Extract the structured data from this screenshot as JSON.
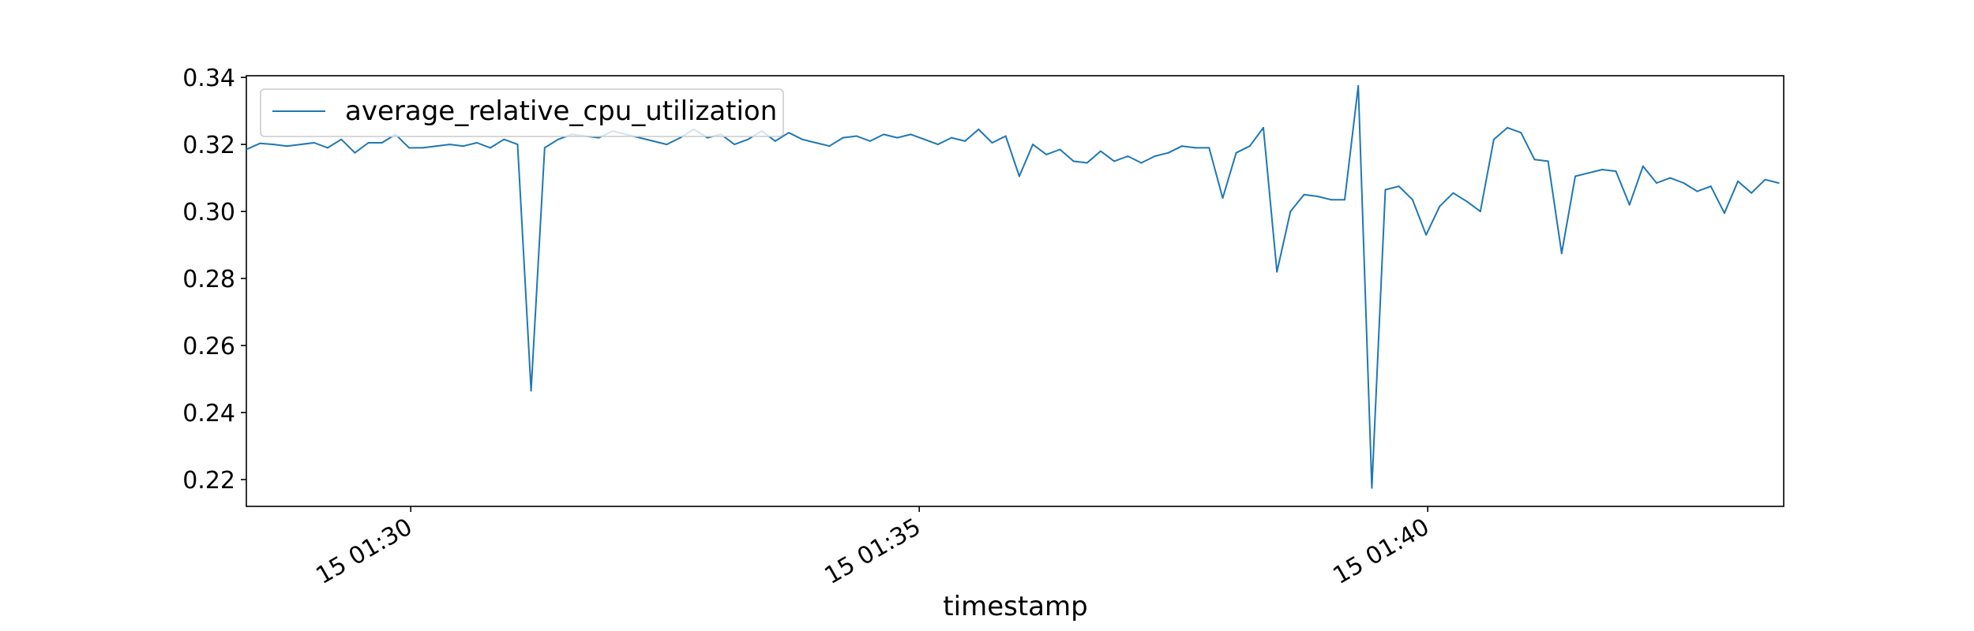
{
  "chart_data": {
    "type": "line",
    "title": "",
    "xlabel": "timestamp",
    "ylabel": "",
    "grid": false,
    "legend_position": "top-left",
    "xlim": [
      "01:28:23",
      "01:43:30"
    ],
    "ylim": [
      0.212,
      0.3405
    ],
    "x_ticks": [
      {
        "time": "01:30:00",
        "label": "15 01:30"
      },
      {
        "time": "01:35:00",
        "label": "15 01:35"
      },
      {
        "time": "01:40:00",
        "label": "15 01:40"
      }
    ],
    "y_ticks": [
      {
        "value": 0.22,
        "label": "0.22"
      },
      {
        "value": 0.24,
        "label": "0.24"
      },
      {
        "value": 0.26,
        "label": "0.26"
      },
      {
        "value": 0.28,
        "label": "0.28"
      },
      {
        "value": 0.3,
        "label": "0.30"
      },
      {
        "value": 0.32,
        "label": "0.32"
      },
      {
        "value": 0.34,
        "label": "0.34"
      }
    ],
    "series": [
      {
        "name": "average_relative_cpu_utilization",
        "color": "#1f77b4",
        "x_start": "01:28:23",
        "x_step_seconds": 8,
        "values": [
          0.3185,
          0.3203,
          0.32,
          0.3195,
          0.32,
          0.3205,
          0.319,
          0.3215,
          0.3175,
          0.3205,
          0.3205,
          0.323,
          0.319,
          0.319,
          0.3195,
          0.32,
          0.3195,
          0.3205,
          0.319,
          0.3215,
          0.32,
          0.2465,
          0.319,
          0.3215,
          0.323,
          0.3225,
          0.322,
          0.324,
          0.323,
          0.322,
          0.321,
          0.32,
          0.322,
          0.3245,
          0.322,
          0.323,
          0.32,
          0.3215,
          0.324,
          0.321,
          0.3235,
          0.3215,
          0.3205,
          0.3195,
          0.322,
          0.3225,
          0.321,
          0.323,
          0.322,
          0.323,
          0.3215,
          0.32,
          0.322,
          0.321,
          0.3245,
          0.3205,
          0.3225,
          0.3105,
          0.32,
          0.317,
          0.3185,
          0.315,
          0.3145,
          0.318,
          0.315,
          0.3165,
          0.3145,
          0.3165,
          0.3175,
          0.3195,
          0.319,
          0.319,
          0.304,
          0.3175,
          0.3195,
          0.325,
          0.282,
          0.3,
          0.305,
          0.3045,
          0.3035,
          0.3035,
          0.3375,
          0.2175,
          0.3065,
          0.3075,
          0.3035,
          0.293,
          0.3015,
          0.3055,
          0.303,
          0.3,
          0.3215,
          0.325,
          0.3235,
          0.3155,
          0.315,
          0.2875,
          0.3105,
          0.3115,
          0.3125,
          0.312,
          0.302,
          0.3135,
          0.3085,
          0.31,
          0.3085,
          0.306,
          0.3075,
          0.2995,
          0.309,
          0.3055,
          0.3095,
          0.3085
        ]
      }
    ]
  }
}
